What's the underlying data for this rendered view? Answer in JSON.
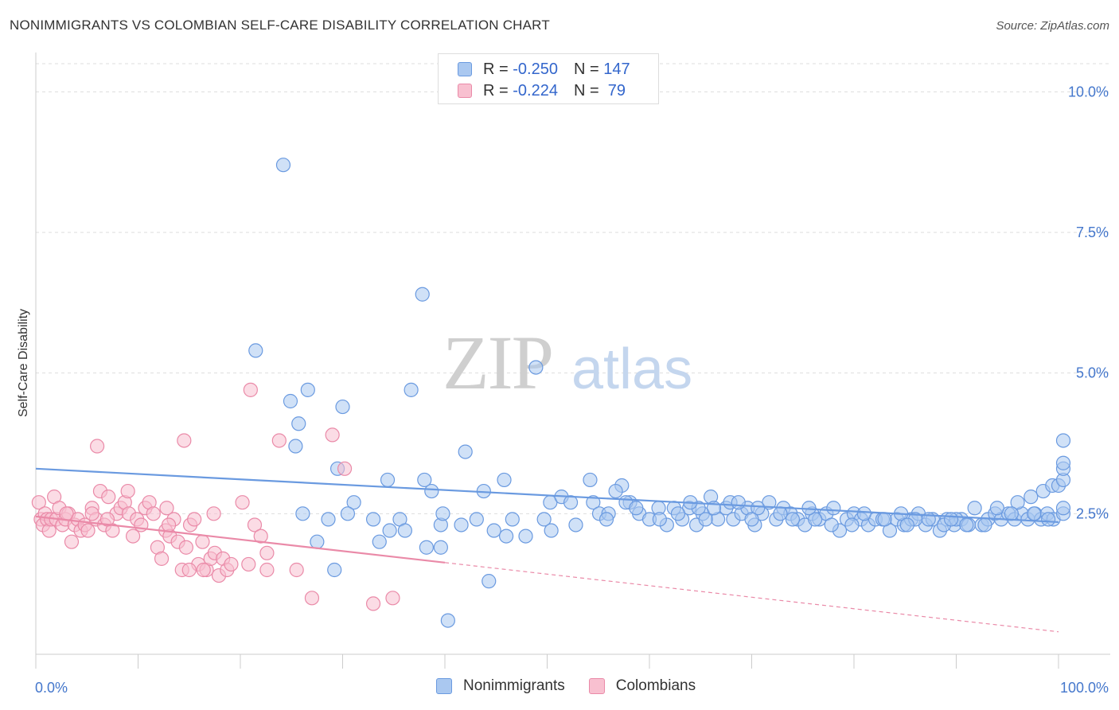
{
  "title": "NONIMMIGRANTS VS COLOMBIAN SELF-CARE DISABILITY CORRELATION CHART",
  "source": "Source: ZipAtlas.com",
  "watermark": {
    "zip": "ZIP",
    "atlas": "atlas"
  },
  "legend": {
    "rows": [
      {
        "r_label": "R = ",
        "r_value": "-0.250",
        "n_label": "N = ",
        "n_value": "147",
        "color": "#aac8f0",
        "border": "#6a9ae0"
      },
      {
        "r_label": "R = ",
        "r_value": "-0.224",
        "n_label": "N = ",
        "n_value": " 79",
        "color": "#f8c0d0",
        "border": "#ea8aa8"
      }
    ]
  },
  "bottom_legend": [
    {
      "label": "Nonimmigrants",
      "color": "#aac8f0",
      "border": "#6a9ae0"
    },
    {
      "label": "Colombians",
      "color": "#f8c0d0",
      "border": "#ea8aa8"
    }
  ],
  "chart_data": {
    "type": "scatter",
    "title": "NONIMMIGRANTS VS COLOMBIAN SELF-CARE DISABILITY CORRELATION CHART",
    "xlabel": "",
    "ylabel": "Self-Care Disability",
    "xlim": [
      0,
      100
    ],
    "ylim": [
      0,
      10.5
    ],
    "x_tick_labels": [
      "0.0%",
      "100.0%"
    ],
    "y_ticks": [
      2.5,
      5.0,
      7.5,
      10.0
    ],
    "y_tick_labels": [
      "2.5%",
      "5.0%",
      "7.5%",
      "10.0%"
    ],
    "grid": true,
    "series": [
      {
        "name": "Nonimmigrants",
        "color": "#6a9ae0",
        "fill": "#aac8f0",
        "trend": {
          "x": [
            0,
            100
          ],
          "y": [
            3.3,
            2.35
          ],
          "dashed_to": null
        },
        "points": [
          [
            24.2,
            8.7
          ],
          [
            37.8,
            6.4
          ],
          [
            21.5,
            5.4
          ],
          [
            48.9,
            5.1
          ],
          [
            24.9,
            4.5
          ],
          [
            26.6,
            4.7
          ],
          [
            36.7,
            4.7
          ],
          [
            30.0,
            4.4
          ],
          [
            25.7,
            4.1
          ],
          [
            25.4,
            3.7
          ],
          [
            42.0,
            3.6
          ],
          [
            29.5,
            3.3
          ],
          [
            34.4,
            3.1
          ],
          [
            38.0,
            3.1
          ],
          [
            38.7,
            2.9
          ],
          [
            45.8,
            3.1
          ],
          [
            43.8,
            2.9
          ],
          [
            54.2,
            3.1
          ],
          [
            57.3,
            3.0
          ],
          [
            31.1,
            2.7
          ],
          [
            26.1,
            2.5
          ],
          [
            28.6,
            2.4
          ],
          [
            30.5,
            2.5
          ],
          [
            33.0,
            2.4
          ],
          [
            35.6,
            2.4
          ],
          [
            36.1,
            2.2
          ],
          [
            34.6,
            2.2
          ],
          [
            27.5,
            2.0
          ],
          [
            33.6,
            2.0
          ],
          [
            39.6,
            2.3
          ],
          [
            41.6,
            2.3
          ],
          [
            39.8,
            2.5
          ],
          [
            43.1,
            2.4
          ],
          [
            44.8,
            2.2
          ],
          [
            46.0,
            2.1
          ],
          [
            46.6,
            2.4
          ],
          [
            47.9,
            2.1
          ],
          [
            49.7,
            2.4
          ],
          [
            50.4,
            2.2
          ],
          [
            38.2,
            1.9
          ],
          [
            39.6,
            1.9
          ],
          [
            29.2,
            1.5
          ],
          [
            44.3,
            1.3
          ],
          [
            40.3,
            0.6
          ],
          [
            50.3,
            2.7
          ],
          [
            51.4,
            2.8
          ],
          [
            52.3,
            2.7
          ],
          [
            54.5,
            2.7
          ],
          [
            55.1,
            2.5
          ],
          [
            56.0,
            2.5
          ],
          [
            56.7,
            2.9
          ],
          [
            58.1,
            2.7
          ],
          [
            59.0,
            2.5
          ],
          [
            60.0,
            2.4
          ],
          [
            60.9,
            2.6
          ],
          [
            61.7,
            2.3
          ],
          [
            62.4,
            2.6
          ],
          [
            63.2,
            2.4
          ],
          [
            63.9,
            2.6
          ],
          [
            64.6,
            2.3
          ],
          [
            65.2,
            2.5
          ],
          [
            66.0,
            2.8
          ],
          [
            66.7,
            2.4
          ],
          [
            67.5,
            2.6
          ],
          [
            68.2,
            2.4
          ],
          [
            69.0,
            2.5
          ],
          [
            69.6,
            2.6
          ],
          [
            70.3,
            2.3
          ],
          [
            71.0,
            2.5
          ],
          [
            71.7,
            2.7
          ],
          [
            72.4,
            2.4
          ],
          [
            73.1,
            2.6
          ],
          [
            73.8,
            2.5
          ],
          [
            74.5,
            2.4
          ],
          [
            75.2,
            2.3
          ],
          [
            75.9,
            2.5
          ],
          [
            76.6,
            2.4
          ],
          [
            77.3,
            2.5
          ],
          [
            78.0,
            2.6
          ],
          [
            78.6,
            2.2
          ],
          [
            79.3,
            2.4
          ],
          [
            80.0,
            2.5
          ],
          [
            80.7,
            2.4
          ],
          [
            81.4,
            2.3
          ],
          [
            82.1,
            2.4
          ],
          [
            82.8,
            2.4
          ],
          [
            83.5,
            2.2
          ],
          [
            84.2,
            2.4
          ],
          [
            84.9,
            2.3
          ],
          [
            85.6,
            2.4
          ],
          [
            86.3,
            2.5
          ],
          [
            87.0,
            2.3
          ],
          [
            87.7,
            2.4
          ],
          [
            88.4,
            2.2
          ],
          [
            89.1,
            2.4
          ],
          [
            89.8,
            2.3
          ],
          [
            90.5,
            2.4
          ],
          [
            91.2,
            2.3
          ],
          [
            91.8,
            2.6
          ],
          [
            92.5,
            2.3
          ],
          [
            93.1,
            2.4
          ],
          [
            93.8,
            2.5
          ],
          [
            94.4,
            2.4
          ],
          [
            95.1,
            2.5
          ],
          [
            95.7,
            2.4
          ],
          [
            96.4,
            2.5
          ],
          [
            97.0,
            2.4
          ],
          [
            97.7,
            2.5
          ],
          [
            98.3,
            2.4
          ],
          [
            98.9,
            2.5
          ],
          [
            99.5,
            2.4
          ],
          [
            64.8,
            2.6
          ],
          [
            67.9,
            2.7
          ],
          [
            72.8,
            2.5
          ],
          [
            76.2,
            2.4
          ],
          [
            79.8,
            2.3
          ],
          [
            83.0,
            2.4
          ],
          [
            86.0,
            2.4
          ],
          [
            88.8,
            2.3
          ],
          [
            90.0,
            2.4
          ],
          [
            91.0,
            2.3
          ],
          [
            94.0,
            2.6
          ],
          [
            96.0,
            2.7
          ],
          [
            97.3,
            2.8
          ],
          [
            98.5,
            2.9
          ],
          [
            99.4,
            3.0
          ],
          [
            100.0,
            3.0
          ],
          [
            101.0,
            3.1
          ],
          [
            102.5,
            3.3
          ],
          [
            103.0,
            3.4
          ],
          [
            103.5,
            3.8
          ],
          [
            100.5,
            2.5
          ],
          [
            101.5,
            2.6
          ],
          [
            99.0,
            2.4
          ],
          [
            52.8,
            2.3
          ],
          [
            55.8,
            2.4
          ],
          [
            57.7,
            2.7
          ],
          [
            58.7,
            2.6
          ],
          [
            61.0,
            2.4
          ],
          [
            62.8,
            2.5
          ],
          [
            64.0,
            2.7
          ],
          [
            66.3,
            2.6
          ],
          [
            68.7,
            2.7
          ],
          [
            70.6,
            2.6
          ],
          [
            74.0,
            2.4
          ],
          [
            77.8,
            2.3
          ],
          [
            81.0,
            2.5
          ],
          [
            84.6,
            2.5
          ],
          [
            87.3,
            2.4
          ],
          [
            89.5,
            2.4
          ],
          [
            92.8,
            2.3
          ],
          [
            95.4,
            2.5
          ],
          [
            97.6,
            2.5
          ],
          [
            85.2,
            2.3
          ],
          [
            75.6,
            2.6
          ],
          [
            70.0,
            2.4
          ],
          [
            65.5,
            2.4
          ]
        ]
      },
      {
        "name": "Colombians",
        "color": "#ea8aa8",
        "fill": "#f8c0d0",
        "trend": {
          "x": [
            0,
            40
          ],
          "y": [
            2.45,
            1.63
          ],
          "dashed_to": {
            "x": 100,
            "y": 0.4
          }
        },
        "points": [
          [
            0.3,
            2.7
          ],
          [
            0.5,
            2.4
          ],
          [
            0.7,
            2.3
          ],
          [
            0.9,
            2.5
          ],
          [
            1.1,
            2.4
          ],
          [
            1.3,
            2.2
          ],
          [
            1.5,
            2.4
          ],
          [
            1.8,
            2.8
          ],
          [
            2.0,
            2.4
          ],
          [
            2.3,
            2.6
          ],
          [
            2.6,
            2.3
          ],
          [
            2.9,
            2.4
          ],
          [
            3.2,
            2.5
          ],
          [
            3.5,
            2.0
          ],
          [
            3.8,
            2.3
          ],
          [
            4.1,
            2.4
          ],
          [
            4.4,
            2.2
          ],
          [
            4.8,
            2.3
          ],
          [
            5.1,
            2.2
          ],
          [
            5.5,
            2.6
          ],
          [
            5.9,
            2.4
          ],
          [
            6.3,
            2.9
          ],
          [
            6.7,
            2.3
          ],
          [
            7.1,
            2.8
          ],
          [
            7.5,
            2.2
          ],
          [
            7.9,
            2.5
          ],
          [
            8.3,
            2.6
          ],
          [
            8.7,
            2.7
          ],
          [
            9.1,
            2.5
          ],
          [
            9.5,
            2.1
          ],
          [
            9.9,
            2.4
          ],
          [
            10.3,
            2.3
          ],
          [
            10.7,
            2.6
          ],
          [
            11.1,
            2.7
          ],
          [
            11.5,
            2.5
          ],
          [
            11.9,
            1.9
          ],
          [
            12.3,
            1.7
          ],
          [
            12.7,
            2.2
          ],
          [
            13.1,
            2.1
          ],
          [
            13.5,
            2.4
          ],
          [
            13.9,
            2.0
          ],
          [
            14.3,
            1.5
          ],
          [
            14.7,
            1.9
          ],
          [
            15.1,
            2.3
          ],
          [
            15.5,
            2.4
          ],
          [
            15.9,
            1.6
          ],
          [
            16.3,
            2.0
          ],
          [
            16.7,
            1.5
          ],
          [
            17.1,
            1.7
          ],
          [
            17.5,
            1.8
          ],
          [
            17.9,
            1.4
          ],
          [
            18.3,
            1.7
          ],
          [
            18.7,
            1.5
          ],
          [
            19.1,
            1.6
          ],
          [
            20.2,
            2.7
          ],
          [
            20.8,
            1.6
          ],
          [
            21.4,
            2.3
          ],
          [
            22.0,
            2.1
          ],
          [
            22.6,
            1.8
          ],
          [
            17.4,
            2.5
          ],
          [
            15.0,
            1.5
          ],
          [
            13.0,
            2.3
          ],
          [
            9.0,
            2.9
          ],
          [
            6.0,
            3.7
          ],
          [
            14.5,
            3.8
          ],
          [
            21.0,
            4.7
          ],
          [
            23.8,
            3.8
          ],
          [
            29.0,
            3.9
          ],
          [
            30.2,
            3.3
          ],
          [
            22.6,
            1.5
          ],
          [
            25.5,
            1.5
          ],
          [
            16.4,
            1.5
          ],
          [
            27.0,
            1.0
          ],
          [
            33.0,
            0.9
          ],
          [
            34.9,
            1.0
          ],
          [
            12.8,
            2.6
          ],
          [
            3.0,
            2.5
          ],
          [
            7.0,
            2.4
          ],
          [
            5.5,
            2.5
          ]
        ]
      }
    ]
  }
}
